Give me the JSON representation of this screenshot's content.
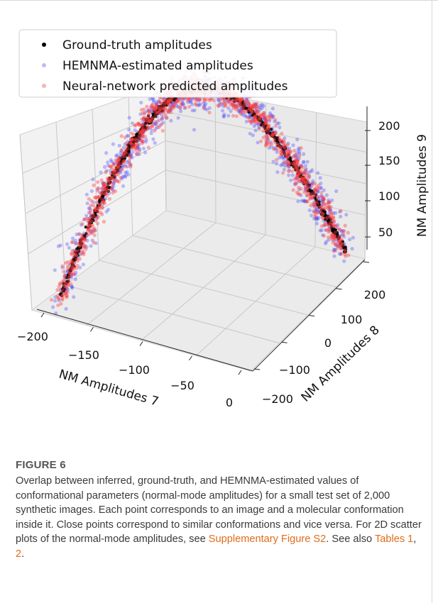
{
  "figure": {
    "label": "FIGURE 6",
    "caption_parts": [
      {
        "text": "Overlap between inferred, ground-truth, and HEMNMA-estimated values of conformational parameters (normal-mode amplitudes) for a small test set of 2,000 synthetic images. Each point corresponds to an image and a molecular conformation inside it. Close points correspond to similar conformations and vice versa. For 2D scatter plots of the normal-mode amplitudes, see "
      },
      {
        "text": "Supplementary Figure S2",
        "link": true
      },
      {
        "text": ". See also "
      },
      {
        "text": "Tables 1",
        "link": true
      },
      {
        "text": ", "
      },
      {
        "text": "2",
        "link": true
      },
      {
        "text": "."
      }
    ]
  },
  "colors": {
    "ground_truth": "#000000",
    "hemnma": "#3b3bff",
    "neural": "#ff3b3b",
    "pane_light": "#f2f2f2",
    "pane_dark": "#e6e6e6",
    "grid": "#c8c8c8",
    "link": "#e06c1a"
  },
  "chart_data": {
    "type": "scatter3d",
    "title": "",
    "xlabel": "NM Amplitudes 7",
    "ylabel": "NM Amplitudes 8",
    "zlabel": "NM Amplitudes 9",
    "x_ticks": [
      "−200",
      "−150",
      "−100",
      "−50",
      "0"
    ],
    "y_ticks": [
      "−200",
      "−100",
      "0",
      "100",
      "200"
    ],
    "z_ticks": [
      "50",
      "100",
      "150",
      "200"
    ],
    "legend_position": "top-left",
    "n_points_per_series": 2000,
    "series": [
      {
        "name": "Ground-truth amplitudes",
        "color": "#000000",
        "marker": "dot"
      },
      {
        "name": "HEMNMA-estimated amplitudes",
        "color": "#3b3bff",
        "marker": "dot"
      },
      {
        "name": "Neural-network predicted amplitudes",
        "color": "#ff3b3b",
        "marker": "dot"
      }
    ]
  }
}
